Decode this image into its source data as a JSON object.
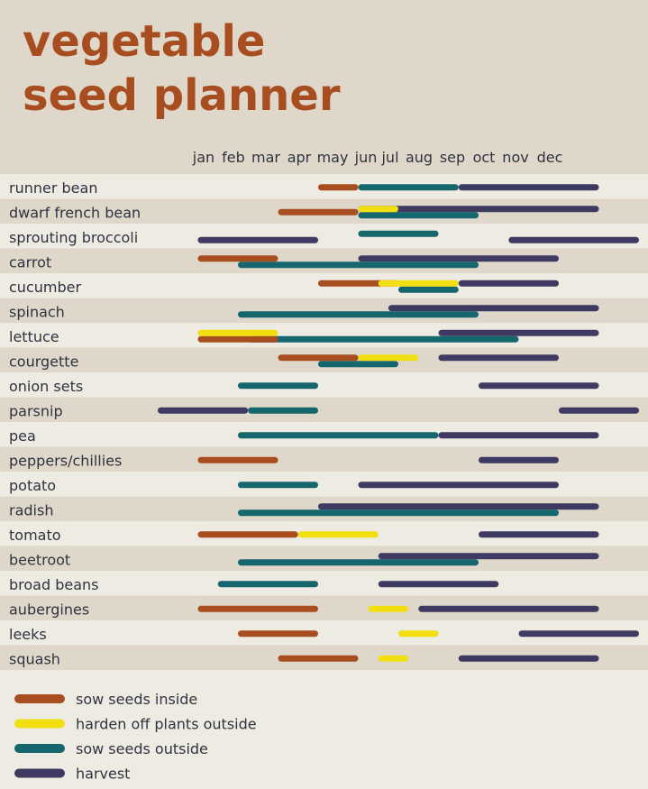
{
  "chart_data": {
    "type": "gantt",
    "title_lines": [
      "vegetable",
      "seed planner"
    ],
    "months": [
      "jan",
      "feb",
      "mar",
      "apr",
      "may",
      "jun",
      "jul",
      "aug",
      "sep",
      "oct",
      "nov",
      "dec"
    ],
    "x_axis": {
      "unit": "month",
      "start": "jan",
      "end": "dec"
    },
    "colors": {
      "sow_inside": "#a84d1f",
      "harden_off": "#f2df12",
      "sow_outside": "#16666e",
      "harvest": "#3f3a62",
      "stripe_light": "#eeebe2",
      "stripe_dark": "#dfd8ca"
    },
    "legend": [
      {
        "key": "sow_inside",
        "label": "sow seeds inside"
      },
      {
        "key": "harden_off",
        "label": "harden off plants outside"
      },
      {
        "key": "sow_outside",
        "label": "sow seeds outside"
      },
      {
        "key": "harvest",
        "label": "harvest"
      }
    ],
    "rows": [
      {
        "label": "runner bean",
        "bars": [
          {
            "type": "sow_inside",
            "start": 4.0,
            "end": 5.0
          },
          {
            "type": "sow_outside",
            "start": 5.0,
            "end": 7.5
          },
          {
            "type": "harvest",
            "start": 7.5,
            "end": 11.0
          }
        ]
      },
      {
        "label": "dwarf french bean",
        "bars": [
          {
            "type": "sow_inside",
            "start": 3.0,
            "end": 5.0
          },
          {
            "type": "harvest",
            "start": 5.0,
            "end": 11.0,
            "lane": -1
          },
          {
            "type": "sow_outside",
            "start": 5.0,
            "end": 8.0,
            "lane": 1
          },
          {
            "type": "harden_off",
            "start": 5.0,
            "end": 6.0,
            "lane": -1
          }
        ]
      },
      {
        "label": "sprouting broccoli",
        "bars": [
          {
            "type": "harvest",
            "start": 1.0,
            "end": 4.0,
            "lane": 1
          },
          {
            "type": "sow_outside",
            "start": 5.0,
            "end": 7.0,
            "lane": -1
          },
          {
            "type": "harvest",
            "start": 8.75,
            "end": 12.0,
            "lane": 1
          }
        ]
      },
      {
        "label": "carrot",
        "bars": [
          {
            "type": "sow_inside",
            "start": 1.0,
            "end": 3.0,
            "lane": -1
          },
          {
            "type": "harvest",
            "start": 5.0,
            "end": 10.0,
            "lane": -1
          },
          {
            "type": "sow_outside",
            "start": 2.0,
            "end": 8.0,
            "lane": 1
          }
        ]
      },
      {
        "label": "cucumber",
        "bars": [
          {
            "type": "sow_inside",
            "start": 4.0,
            "end": 6.0,
            "lane": -1
          },
          {
            "type": "sow_outside",
            "start": 6.0,
            "end": 7.5,
            "lane": 1
          },
          {
            "type": "harvest",
            "start": 7.5,
            "end": 10.0,
            "lane": -1
          },
          {
            "type": "harden_off",
            "start": 5.5,
            "end": 7.5,
            "lane": -1
          }
        ]
      },
      {
        "label": "spinach",
        "bars": [
          {
            "type": "harvest",
            "start": 5.75,
            "end": 11.0,
            "lane": -1
          },
          {
            "type": "sow_outside",
            "start": 2.0,
            "end": 8.0,
            "lane": 1
          }
        ]
      },
      {
        "label": "lettuce",
        "bars": [
          {
            "type": "harvest",
            "start": 7.0,
            "end": 11.0,
            "lane": -1
          },
          {
            "type": "sow_inside",
            "start": 1.0,
            "end": 3.0,
            "lane": 1
          },
          {
            "type": "sow_outside",
            "start": 2.25,
            "end": 9.0,
            "lane": 1
          },
          {
            "type": "harden_off",
            "start": 1.0,
            "end": 3.0,
            "lane": -1
          }
        ]
      },
      {
        "label": "courgette",
        "bars": [
          {
            "type": "sow_inside",
            "start": 3.0,
            "end": 5.0,
            "lane": -1
          },
          {
            "type": "sow_outside",
            "start": 4.0,
            "end": 6.0,
            "lane": 1
          },
          {
            "type": "harden_off",
            "start": 5.0,
            "end": 6.5,
            "lane": -1
          },
          {
            "type": "harvest",
            "start": 7.0,
            "end": 10.0,
            "lane": -1
          }
        ]
      },
      {
        "label": "onion sets",
        "bars": [
          {
            "type": "sow_outside",
            "start": 2.0,
            "end": 4.0
          },
          {
            "type": "harvest",
            "start": 8.0,
            "end": 11.0
          }
        ]
      },
      {
        "label": "parsnip",
        "bars": [
          {
            "type": "harvest",
            "start": 0.0,
            "end": 2.25
          },
          {
            "type": "sow_outside",
            "start": 2.25,
            "end": 4.0
          },
          {
            "type": "harvest",
            "start": 10.0,
            "end": 12.0
          }
        ]
      },
      {
        "label": "pea",
        "bars": [
          {
            "type": "sow_outside",
            "start": 2.0,
            "end": 7.0
          },
          {
            "type": "harvest",
            "start": 7.0,
            "end": 11.0
          }
        ]
      },
      {
        "label": "peppers/chillies",
        "bars": [
          {
            "type": "sow_inside",
            "start": 1.0,
            "end": 3.0
          },
          {
            "type": "harvest",
            "start": 8.0,
            "end": 10.0
          }
        ]
      },
      {
        "label": "potato",
        "bars": [
          {
            "type": "sow_outside",
            "start": 2.0,
            "end": 4.0
          },
          {
            "type": "harvest",
            "start": 5.0,
            "end": 10.0
          }
        ]
      },
      {
        "label": "radish",
        "bars": [
          {
            "type": "harvest",
            "start": 4.0,
            "end": 11.0,
            "lane": -1
          },
          {
            "type": "sow_outside",
            "start": 2.0,
            "end": 10.0,
            "lane": 1
          }
        ]
      },
      {
        "label": "tomato",
        "bars": [
          {
            "type": "sow_inside",
            "start": 1.0,
            "end": 3.5
          },
          {
            "type": "harden_off",
            "start": 3.5,
            "end": 5.5
          },
          {
            "type": "harvest",
            "start": 8.0,
            "end": 11.0
          }
        ]
      },
      {
        "label": "beetroot",
        "bars": [
          {
            "type": "harvest",
            "start": 5.5,
            "end": 11.0,
            "lane": -1
          },
          {
            "type": "sow_outside",
            "start": 2.0,
            "end": 8.0,
            "lane": 1
          }
        ]
      },
      {
        "label": "broad beans",
        "bars": [
          {
            "type": "sow_outside",
            "start": 1.5,
            "end": 4.0
          },
          {
            "type": "harvest",
            "start": 5.5,
            "end": 8.5
          }
        ]
      },
      {
        "label": "aubergines",
        "bars": [
          {
            "type": "sow_inside",
            "start": 1.0,
            "end": 4.0
          },
          {
            "type": "harden_off",
            "start": 5.25,
            "end": 6.25
          },
          {
            "type": "harvest",
            "start": 6.5,
            "end": 11.0
          }
        ]
      },
      {
        "label": "leeks",
        "bars": [
          {
            "type": "sow_inside",
            "start": 2.0,
            "end": 4.0
          },
          {
            "type": "harden_off",
            "start": 6.0,
            "end": 7.0
          },
          {
            "type": "harvest",
            "start": 9.0,
            "end": 12.0
          }
        ]
      },
      {
        "label": "squash",
        "bars": [
          {
            "type": "sow_inside",
            "start": 3.0,
            "end": 5.0
          },
          {
            "type": "harden_off",
            "start": 5.5,
            "end": 6.25
          },
          {
            "type": "harvest",
            "start": 7.5,
            "end": 11.0
          }
        ]
      }
    ]
  }
}
